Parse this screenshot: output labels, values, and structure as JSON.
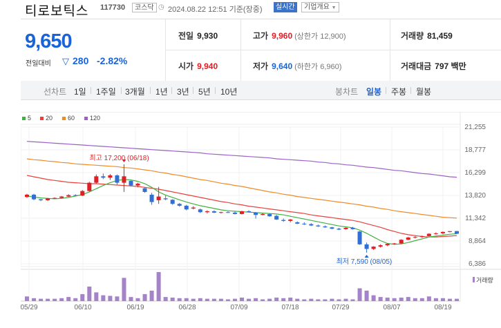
{
  "header": {
    "name": "티로보틱스",
    "code": "117730",
    "market": "코스닥",
    "datetime": "2024.08.22 12:51 기준(장중)",
    "live_label": "실시간",
    "corp_label": "기업개요"
  },
  "summary": {
    "price": "9,650",
    "change_label": "전일대비",
    "change_value": "280",
    "change_pct": "-2.82%",
    "prev_label": "전일",
    "prev_value": "9,930",
    "high_label": "고가",
    "high_value": "9,960",
    "upper_limit": "(상한가 12,900)",
    "volume_label": "거래량",
    "volume_value": "81,459",
    "open_label": "시가",
    "open_value": "9,940",
    "low_label": "저가",
    "low_value": "9,640",
    "lower_limit": "(하한가 6,960)",
    "amount_label": "거래대금",
    "amount_value": "797 백만"
  },
  "tabs": {
    "line_head": "선차트",
    "line": [
      "1일",
      "1주일",
      "3개월",
      "1년",
      "3년",
      "5년",
      "10년"
    ],
    "candle_head": "봉차트",
    "candle": [
      "일봉",
      "주봉",
      "월봉"
    ],
    "active_candle": "일봉"
  },
  "chart_data": {
    "type": "candlestick",
    "legend": [
      {
        "label": "5",
        "color": "#40b040"
      },
      {
        "label": "20",
        "color": "#e8413a"
      },
      {
        "label": "60",
        "color": "#f08a24"
      },
      {
        "label": "120",
        "color": "#9b5fc6"
      }
    ],
    "y_ticks": [
      "21,255",
      "18,777",
      "16,299",
      "13,820",
      "11,342",
      "8,864",
      "6,386"
    ],
    "ylim": [
      6386,
      21255
    ],
    "x_ticks": [
      "05/29",
      "06/10",
      "06/19",
      "06/28",
      "07/09",
      "07/18",
      "07/29",
      "08/07",
      "08/19"
    ],
    "high_annotation": "최고 17,200 (06/18)",
    "low_annotation": "최저 7,590 (08/05)",
    "volume_label": "거래량",
    "colors": {
      "up": "#e01e25",
      "down": "#2f6fd6",
      "ma5": "#40b040",
      "ma20": "#e8413a",
      "ma60": "#f08a24",
      "ma120": "#9b5fc6"
    },
    "candles": [
      [
        13650,
        14000,
        13550,
        13900
      ],
      [
        13900,
        14000,
        13300,
        13400
      ],
      [
        13400,
        13450,
        13200,
        13300
      ],
      [
        13300,
        13550,
        13200,
        13500
      ],
      [
        13500,
        13600,
        13450,
        13550
      ],
      [
        13550,
        13750,
        13500,
        13700
      ],
      [
        13700,
        13950,
        13650,
        13850
      ],
      [
        13850,
        13950,
        13750,
        13800
      ],
      [
        13800,
        14400,
        13750,
        14300
      ],
      [
        14300,
        15300,
        14250,
        15200
      ],
      [
        15200,
        16100,
        15100,
        15900
      ],
      [
        15900,
        16200,
        15600,
        15750
      ],
      [
        15750,
        16150,
        15500,
        16000
      ],
      [
        16000,
        16100,
        15000,
        15200
      ],
      [
        15200,
        17200,
        14200,
        15900
      ],
      [
        15400,
        15450,
        14800,
        14900
      ],
      [
        14900,
        15200,
        14700,
        15100
      ],
      [
        14600,
        14700,
        14100,
        14200
      ],
      [
        13900,
        14100,
        12800,
        13100
      ],
      [
        13300,
        14750,
        12900,
        13700
      ],
      [
        13500,
        13800,
        13300,
        13400
      ],
      [
        13350,
        13400,
        12800,
        12900
      ],
      [
        12900,
        13000,
        12600,
        12700
      ],
      [
        12700,
        12800,
        12200,
        12300
      ],
      [
        12400,
        12650,
        12300,
        12500
      ],
      [
        12300,
        12400,
        11900,
        12000
      ],
      [
        12000,
        12200,
        11850,
        12100
      ],
      [
        12100,
        12200,
        11900,
        11950
      ],
      [
        11950,
        12050,
        11850,
        12000
      ],
      [
        12000,
        12100,
        11900,
        11950
      ],
      [
        11950,
        12050,
        11750,
        11800
      ],
      [
        11800,
        12150,
        11750,
        12100
      ],
      [
        12100,
        12200,
        11950,
        12000
      ],
      [
        11950,
        12000,
        11300,
        11700
      ],
      [
        11700,
        11900,
        11650,
        11800
      ],
      [
        11800,
        11850,
        11500,
        11550
      ],
      [
        11600,
        11700,
        11150,
        11200
      ],
      [
        11150,
        11300,
        10950,
        11050
      ],
      [
        11050,
        11250,
        10900,
        11200
      ],
      [
        10900,
        11000,
        10700,
        10750
      ],
      [
        10750,
        10900,
        10600,
        10700
      ],
      [
        10700,
        10800,
        10500,
        10550
      ],
      [
        10550,
        10650,
        10400,
        10450
      ],
      [
        10450,
        10550,
        10300,
        10350
      ],
      [
        10350,
        10400,
        10150,
        10200
      ],
      [
        10200,
        10300,
        10050,
        10100
      ],
      [
        10150,
        10350,
        10100,
        10300
      ],
      [
        10300,
        10400,
        10100,
        10150
      ],
      [
        9900,
        9950,
        8450,
        8500
      ],
      [
        8500,
        8700,
        7590,
        8000
      ],
      [
        8000,
        8300,
        7900,
        8250
      ],
      [
        8250,
        8500,
        8150,
        8400
      ],
      [
        8400,
        8600,
        8300,
        8550
      ],
      [
        8550,
        8650,
        8450,
        8600
      ],
      [
        8600,
        9050,
        8550,
        9000
      ],
      [
        9000,
        9300,
        8950,
        9250
      ],
      [
        9250,
        9400,
        9150,
        9300
      ],
      [
        9300,
        9450,
        9200,
        9400
      ],
      [
        9400,
        9700,
        9350,
        9650
      ],
      [
        9650,
        9800,
        9550,
        9700
      ],
      [
        9700,
        9900,
        9600,
        9850
      ],
      [
        9850,
        9950,
        9800,
        9930
      ],
      [
        9940,
        9960,
        9640,
        9650
      ]
    ],
    "volumes": [
      8,
      5,
      4,
      4,
      4,
      5,
      7,
      5,
      12,
      25,
      15,
      10,
      9,
      8,
      40,
      7,
      5,
      12,
      18,
      50,
      7,
      6,
      5,
      5,
      4,
      5,
      4,
      4,
      4,
      3,
      4,
      6,
      4,
      5,
      3,
      4,
      6,
      5,
      6,
      4,
      3,
      4,
      3,
      3,
      4,
      3,
      4,
      3,
      22,
      18,
      10,
      7,
      6,
      5,
      6,
      7,
      5,
      5,
      8,
      5,
      5,
      4,
      4
    ],
    "ma5": [
      13750,
      13650,
      13550,
      13500,
      13450,
      13500,
      13600,
      13750,
      13900,
      14200,
      14550,
      14900,
      15200,
      15450,
      15550,
      15500,
      15350,
      15100,
      14700,
      14200,
      13850,
      13600,
      13350,
      13100,
      12900,
      12700,
      12550,
      12400,
      12250,
      12150,
      12100,
      12050,
      12000,
      11950,
      11900,
      11850,
      11800,
      11700,
      11550,
      11400,
      11250,
      11100,
      10950,
      10800,
      10650,
      10500,
      10400,
      10300,
      10050,
      9700,
      9300,
      8900,
      8600,
      8500,
      8550,
      8700,
      8900,
      9100,
      9300,
      9400,
      9500,
      9600,
      9650
    ],
    "ma20": [
      16000,
      15850,
      15700,
      15550,
      15450,
      15350,
      15250,
      15200,
      15150,
      15100,
      15100,
      15050,
      15000,
      14950,
      14900,
      14850,
      14800,
      14700,
      14600,
      14500,
      14350,
      14200,
      14050,
      13900,
      13750,
      13600,
      13450,
      13300,
      13150,
      13050,
      12900,
      12800,
      12650,
      12550,
      12450,
      12350,
      12250,
      12150,
      12050,
      11950,
      11850,
      11700,
      11600,
      11500,
      11400,
      11300,
      11200,
      11100,
      10950,
      10750,
      10550,
      10350,
      10100,
      9900,
      9700,
      9550,
      9450,
      9350,
      9300,
      9300,
      9350,
      9400,
      9450
    ],
    "ma60": [
      17800,
      17700,
      17650,
      17550,
      17500,
      17400,
      17350,
      17250,
      17200,
      17150,
      17100,
      17050,
      17000,
      16950,
      16850,
      16800,
      16700,
      16600,
      16500,
      16350,
      16250,
      16100,
      16000,
      15850,
      15700,
      15550,
      15450,
      15300,
      15150,
      15050,
      14900,
      14800,
      14650,
      14500,
      14350,
      14200,
      14100,
      13950,
      13850,
      13700,
      13600,
      13500,
      13400,
      13300,
      13200,
      13100,
      13000,
      12900,
      12800,
      12650,
      12550,
      12400,
      12300,
      12150,
      12050,
      11950,
      11850,
      11750,
      11650,
      11550,
      11450,
      11400,
      11350
    ],
    "ma120": [
      19700,
      19650,
      19600,
      19550,
      19500,
      19450,
      19400,
      19350,
      19300,
      19250,
      19200,
      19150,
      19100,
      19050,
      19000,
      18950,
      18900,
      18850,
      18800,
      18750,
      18700,
      18650,
      18600,
      18550,
      18500,
      18450,
      18350,
      18300,
      18250,
      18200,
      18150,
      18100,
      18050,
      18000,
      17950,
      17900,
      17800,
      17750,
      17700,
      17650,
      17600,
      17550,
      17450,
      17400,
      17300,
      17250,
      17150,
      17100,
      17000,
      16900,
      16850,
      16750,
      16650,
      16550,
      16500,
      16400,
      16300,
      16200,
      16150,
      16050,
      15950,
      15850,
      15800
    ]
  }
}
